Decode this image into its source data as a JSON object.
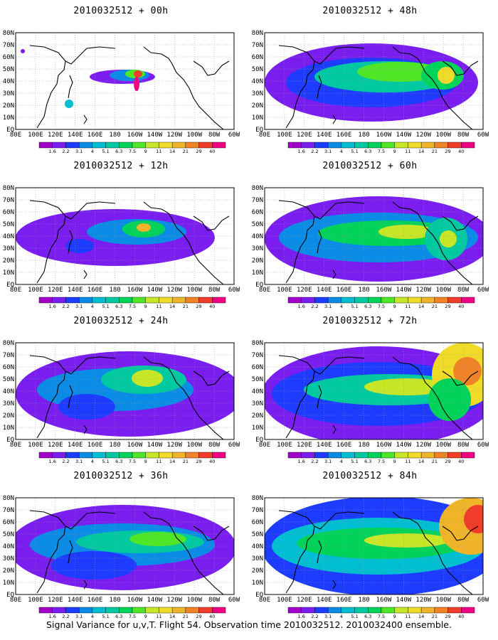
{
  "caption": "Signal Variance for u,v,T. Flight 54. Observation time 2010032512. 2010032400 ensemble.",
  "lat_labels": [
    "80N",
    "70N",
    "60N",
    "50N",
    "40N",
    "30N",
    "20N",
    "10N",
    "EQ"
  ],
  "lon_labels": [
    "80E",
    "100E",
    "120E",
    "140E",
    "160E",
    "180",
    "160W",
    "140W",
    "120W",
    "100W",
    "80W",
    "60W"
  ],
  "colorbar": {
    "labels": [
      "1.6",
      "2.2",
      "3.1",
      "4",
      "5.1",
      "6.3",
      "7.5",
      "9",
      "11",
      "14",
      "21",
      "29",
      "40"
    ],
    "colors": [
      "#a100c8",
      "#7a1ef0",
      "#1e3cff",
      "#0a8ce6",
      "#00bed2",
      "#00c8a0",
      "#00d25a",
      "#50e628",
      "#c8e628",
      "#f0dc28",
      "#f0b428",
      "#f08228",
      "#f03c28",
      "#f00082"
    ]
  },
  "panels": [
    {
      "title": "2010032512 + 00h"
    },
    {
      "title": "2010032512 + 48h"
    },
    {
      "title": "2010032512 + 12h"
    },
    {
      "title": "2010032512 + 60h"
    },
    {
      "title": "2010032512 + 24h"
    },
    {
      "title": "2010032512 + 72h"
    },
    {
      "title": "2010032512 + 36h"
    },
    {
      "title": "2010032512 + 84h"
    }
  ]
}
